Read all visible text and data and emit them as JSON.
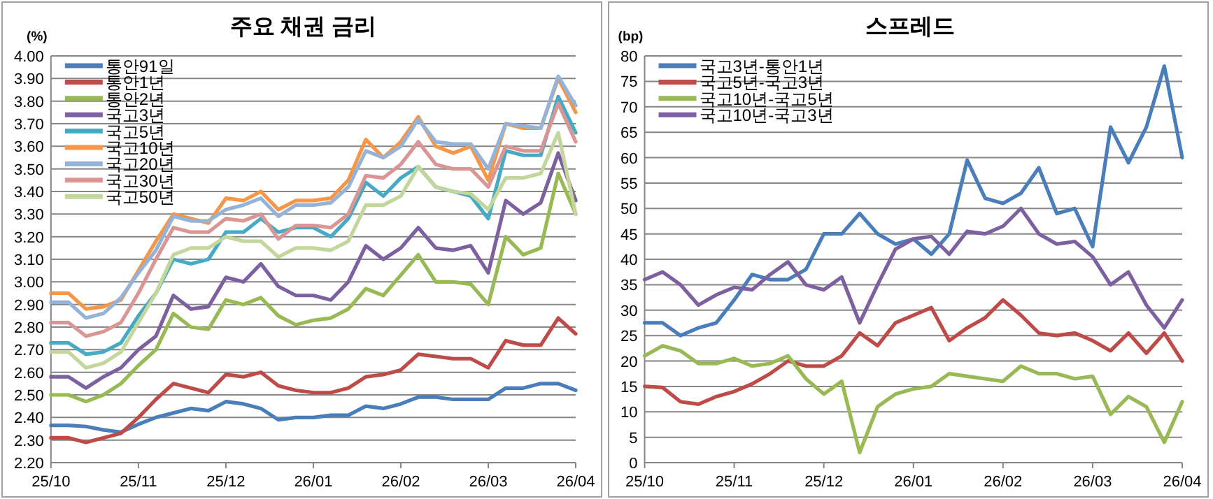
{
  "chart_data": [
    {
      "type": "line",
      "title": "주요 채권 금리",
      "ylabel": "(%)",
      "grid": "y",
      "legend": "top left",
      "categories": [
        "25/10",
        null,
        null,
        null,
        null,
        "25/11",
        null,
        null,
        null,
        null,
        "25/12",
        null,
        null,
        null,
        null,
        "26/01",
        null,
        null,
        null,
        null,
        "26/02",
        null,
        null,
        null,
        null,
        "26/03",
        null,
        null,
        null,
        null,
        "26/04"
      ],
      "ylim": [
        2.2,
        4.0
      ],
      "yticks": [
        {
          "value": 2.2,
          "label": "2.20"
        },
        {
          "value": 2.3,
          "label": "2.30"
        },
        {
          "value": 2.4,
          "label": "2.40"
        },
        {
          "value": 2.5,
          "label": "2.50"
        },
        {
          "value": 2.6,
          "label": "2.60"
        },
        {
          "value": 2.7,
          "label": "2.70"
        },
        {
          "value": 2.8,
          "label": "2.80"
        },
        {
          "value": 2.9,
          "label": "2.90"
        },
        {
          "value": 3.0,
          "label": "3.00"
        },
        {
          "value": 3.1,
          "label": "3.10"
        },
        {
          "value": 3.2,
          "label": "3.20"
        },
        {
          "value": 3.3,
          "label": "3.30"
        },
        {
          "value": 3.4,
          "label": "3.40"
        },
        {
          "value": 3.5,
          "label": "3.50"
        },
        {
          "value": 3.6,
          "label": "3.60"
        },
        {
          "value": 3.7,
          "label": "3.70"
        },
        {
          "value": 3.8,
          "label": "3.80"
        },
        {
          "value": 3.9,
          "label": "3.90"
        },
        {
          "value": 4.0,
          "label": "4.00"
        }
      ],
      "series": [
        {
          "name": "통안91일",
          "color": "#4a7ebb",
          "values": [
            2.365,
            2.365,
            2.36,
            2.345,
            2.335,
            2.37,
            2.4,
            2.42,
            2.44,
            2.43,
            2.47,
            2.46,
            2.44,
            2.39,
            2.4,
            2.4,
            2.41,
            2.41,
            2.45,
            2.44,
            2.46,
            2.49,
            2.49,
            2.48,
            2.48,
            2.48,
            2.53,
            2.53,
            2.55,
            2.55,
            2.52
          ]
        },
        {
          "name": "통안1년",
          "color": "#be4b48",
          "values": [
            2.31,
            2.31,
            2.29,
            2.31,
            2.33,
            2.4,
            2.48,
            2.55,
            2.53,
            2.51,
            2.59,
            2.58,
            2.6,
            2.54,
            2.52,
            2.51,
            2.51,
            2.53,
            2.58,
            2.59,
            2.61,
            2.68,
            2.67,
            2.66,
            2.66,
            2.62,
            2.74,
            2.72,
            2.72,
            2.84,
            2.77
          ]
        },
        {
          "name": "통안2년",
          "color": "#98b954",
          "values": [
            2.5,
            2.5,
            2.47,
            2.5,
            2.55,
            2.63,
            2.7,
            2.86,
            2.8,
            2.79,
            2.92,
            2.9,
            2.93,
            2.85,
            2.81,
            2.83,
            2.84,
            2.88,
            2.97,
            2.94,
            3.03,
            3.12,
            3.0,
            3.0,
            2.99,
            2.9,
            3.2,
            3.12,
            3.15,
            3.48,
            3.3
          ]
        },
        {
          "name": "국고3년",
          "color": "#7d60a0",
          "values": [
            2.58,
            2.58,
            2.53,
            2.58,
            2.62,
            2.7,
            2.76,
            2.94,
            2.88,
            2.89,
            3.02,
            3.0,
            3.08,
            2.98,
            2.94,
            2.94,
            2.92,
            3.0,
            3.16,
            3.1,
            3.15,
            3.24,
            3.15,
            3.14,
            3.16,
            3.04,
            3.36,
            3.3,
            3.35,
            3.57,
            3.36
          ]
        },
        {
          "name": "국고5년",
          "color": "#46aac5",
          "values": [
            2.73,
            2.73,
            2.68,
            2.69,
            2.73,
            2.85,
            2.95,
            3.1,
            3.08,
            3.1,
            3.22,
            3.22,
            3.28,
            3.22,
            3.24,
            3.24,
            3.2,
            3.28,
            3.44,
            3.38,
            3.46,
            3.51,
            3.42,
            3.4,
            3.38,
            3.28,
            3.58,
            3.56,
            3.56,
            3.82,
            3.66
          ]
        },
        {
          "name": "국고10년",
          "color": "#f79646",
          "values": [
            2.95,
            2.95,
            2.88,
            2.89,
            2.92,
            3.05,
            3.18,
            3.3,
            3.28,
            3.26,
            3.37,
            3.36,
            3.4,
            3.32,
            3.36,
            3.36,
            3.37,
            3.45,
            3.63,
            3.55,
            3.62,
            3.73,
            3.6,
            3.57,
            3.6,
            3.45,
            3.7,
            3.68,
            3.68,
            3.9,
            3.75
          ]
        },
        {
          "name": "국고20년",
          "color": "#95b3d7",
          "values": [
            2.91,
            2.91,
            2.84,
            2.86,
            2.93,
            3.04,
            3.14,
            3.29,
            3.27,
            3.27,
            3.32,
            3.34,
            3.37,
            3.29,
            3.34,
            3.34,
            3.35,
            3.42,
            3.58,
            3.55,
            3.6,
            3.72,
            3.62,
            3.61,
            3.61,
            3.5,
            3.7,
            3.69,
            3.68,
            3.91,
            3.78
          ]
        },
        {
          "name": "국고30년",
          "color": "#d99694",
          "values": [
            2.82,
            2.82,
            2.76,
            2.78,
            2.82,
            2.95,
            3.1,
            3.24,
            3.22,
            3.22,
            3.28,
            3.27,
            3.3,
            3.19,
            3.25,
            3.25,
            3.24,
            3.3,
            3.47,
            3.46,
            3.52,
            3.62,
            3.52,
            3.5,
            3.5,
            3.42,
            3.6,
            3.58,
            3.58,
            3.79,
            3.62
          ]
        },
        {
          "name": "국고50년",
          "color": "#c3d69b",
          "values": [
            2.69,
            2.69,
            2.62,
            2.64,
            2.69,
            2.82,
            2.95,
            3.12,
            3.15,
            3.15,
            3.2,
            3.18,
            3.18,
            3.11,
            3.15,
            3.15,
            3.14,
            3.18,
            3.34,
            3.34,
            3.38,
            3.51,
            3.42,
            3.4,
            3.39,
            3.32,
            3.46,
            3.46,
            3.48,
            3.66,
            3.3
          ]
        }
      ]
    },
    {
      "type": "line",
      "title": "스프레드",
      "ylabel": "(bp)",
      "grid": "y",
      "legend": "top left",
      "categories": [
        "25/10",
        null,
        null,
        null,
        null,
        "25/11",
        null,
        null,
        null,
        null,
        "25/12",
        null,
        null,
        null,
        null,
        "26/01",
        null,
        null,
        null,
        null,
        "26/02",
        null,
        null,
        null,
        null,
        "26/03",
        null,
        null,
        null,
        null,
        "26/04"
      ],
      "ylim": [
        0,
        80
      ],
      "yticks": [
        0,
        5,
        10,
        15,
        20,
        25,
        30,
        35,
        40,
        45,
        50,
        55,
        60,
        65,
        70,
        75,
        80
      ],
      "series": [
        {
          "name": "국고3년-통안1년",
          "color": "#4a7ebb",
          "values": [
            27.5,
            27.5,
            25,
            26.5,
            27.5,
            32,
            37,
            36,
            36,
            38,
            45,
            45,
            49,
            45,
            43,
            44,
            41,
            45,
            59.5,
            52,
            51,
            53,
            58,
            49,
            50,
            42.5,
            66,
            59,
            66,
            78,
            60
          ]
        },
        {
          "name": "국고5년-국고3년",
          "color": "#be4b48",
          "values": [
            15,
            14.8,
            12,
            11.5,
            13,
            14,
            15.5,
            17.5,
            20,
            19,
            19,
            21,
            25.5,
            23,
            27.5,
            29,
            30.5,
            24,
            26.5,
            28.5,
            32,
            29,
            25.5,
            25,
            25.5,
            24,
            22,
            25.5,
            21.5,
            25.5,
            20
          ]
        },
        {
          "name": "국고10년-국고5년",
          "color": "#98b954",
          "values": [
            21,
            23,
            22,
            19.5,
            19.5,
            20.5,
            19,
            19.5,
            21,
            16.5,
            13.5,
            16,
            2,
            11,
            13.5,
            14.5,
            15,
            17.5,
            17,
            16.5,
            16,
            19,
            17.5,
            17.5,
            16.5,
            17,
            9.5,
            13,
            11,
            4,
            12
          ]
        },
        {
          "name": "국고10년-국고3년",
          "color": "#7d60a0",
          "values": [
            36,
            37.5,
            35,
            31,
            33,
            34.5,
            34,
            37,
            39.5,
            35,
            34,
            36.5,
            27.5,
            35,
            42,
            44,
            44.5,
            41,
            45.5,
            45,
            46.5,
            50,
            45,
            43,
            43.5,
            40.5,
            35,
            37.5,
            31,
            26.5,
            32
          ]
        }
      ]
    }
  ]
}
